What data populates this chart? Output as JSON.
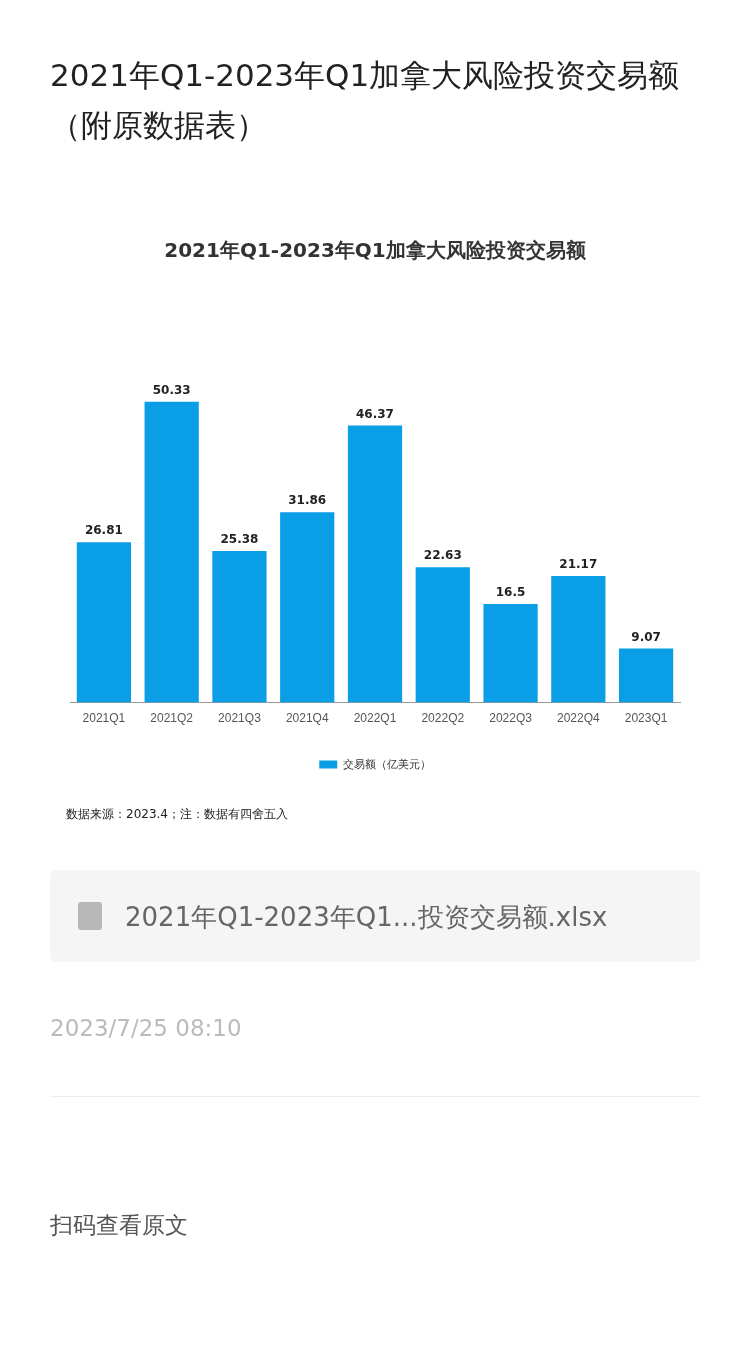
{
  "chart_data": {
    "type": "bar",
    "title": "2021年Q1-2023年Q1加拿大风险投资交易额（附原数据表）",
    "subtitle": "2021年Q1-2023年Q1加拿大风险投资交易额",
    "categories": [
      "2021Q1",
      "2021Q2",
      "2021Q3",
      "2021Q4",
      "2022Q1",
      "2022Q2",
      "2022Q3",
      "2022Q4",
      "2023Q1"
    ],
    "series": [
      {
        "name": "交易额（亿美元）",
        "color": "#0a9ee6",
        "values": [
          26.81,
          50.33,
          25.38,
          31.86,
          46.37,
          22.63,
          16.5,
          21.17,
          9.07
        ]
      }
    ],
    "data_labels": true,
    "grid": false,
    "legend": "bottom",
    "tick_labels": "x",
    "annotations": [
      "数据来源：2023.4；注：数据有四舍五入",
      "2021年Q1-2023年Q1...投资交易额.xlsx",
      "2023/7/25 08:10",
      "扫码查看原文"
    ]
  }
}
